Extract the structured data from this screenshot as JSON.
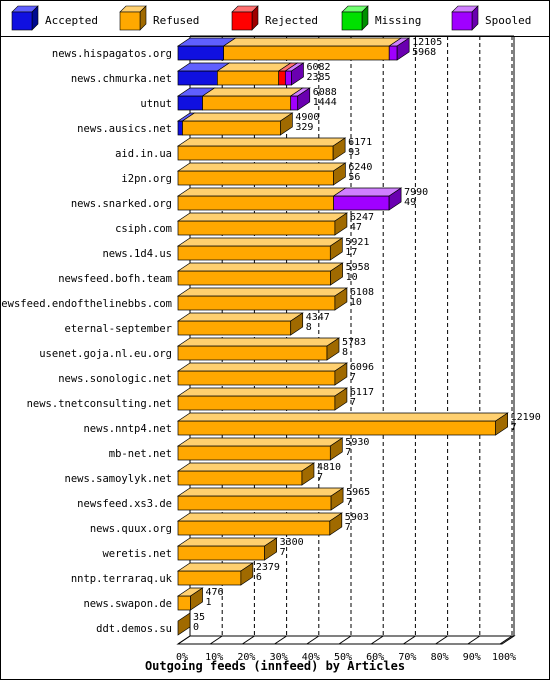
{
  "chart_data": {
    "type": "bar",
    "stacked": true,
    "orientation": "horizontal",
    "style": "3d",
    "xlabel": "Outgoing feeds (innfeed) by Articles",
    "ylabel": "",
    "x_ticks": [
      "0%",
      "10%",
      "20%",
      "30%",
      "40%",
      "50%",
      "60%",
      "70%",
      "80%",
      "90%",
      "100%"
    ],
    "grid": "vertical dashed",
    "legend_position": "top",
    "series": [
      {
        "name": "Accepted",
        "color": "#1010e0",
        "side": "#000a90",
        "top": "#6060ff"
      },
      {
        "name": "Refused",
        "color": "#ffa800",
        "side": "#a06a00",
        "top": "#ffd070"
      },
      {
        "name": "Rejected",
        "color": "#ff0000",
        "side": "#a00000",
        "top": "#ff7070"
      },
      {
        "name": "Missing",
        "color": "#00e000",
        "side": "#009000",
        "top": "#70ff70"
      },
      {
        "name": "Spooled",
        "color": "#a000ff",
        "side": "#6a00b0",
        "top": "#d080ff"
      }
    ],
    "rows": [
      {
        "label": "news.hispagatos.org",
        "total": "12105",
        "spooled": "5968",
        "segs": [
          1785,
          6480,
          0,
          0,
          310
        ]
      },
      {
        "label": "news.chmurka.net",
        "total": "6082",
        "spooled": "2385",
        "segs": [
          1540,
          2400,
          260,
          0,
          240
        ]
      },
      {
        "label": "utnut",
        "total": "6088",
        "spooled": "1444",
        "segs": [
          960,
          3450,
          0,
          0,
          275
        ]
      },
      {
        "label": "news.ausics.net",
        "total": "4900",
        "spooled": "329",
        "segs": [
          175,
          3830,
          0,
          0,
          0
        ]
      },
      {
        "label": "aid.in.ua",
        "total": "6171",
        "spooled": "93",
        "segs": [
          0,
          6070,
          0,
          0,
          0
        ]
      },
      {
        "label": "i2pn.org",
        "total": "6240",
        "spooled": "56",
        "segs": [
          0,
          6080,
          0,
          0,
          0
        ]
      },
      {
        "label": "news.snarked.org",
        "total": "7990",
        "spooled": "49",
        "segs": [
          0,
          6090,
          0,
          0,
          2170
        ]
      },
      {
        "label": "csiph.com",
        "total": "6247",
        "spooled": "47",
        "segs": [
          0,
          6140,
          0,
          0,
          0
        ]
      },
      {
        "label": "news.1d4.us",
        "total": "5921",
        "spooled": "17",
        "segs": [
          0,
          5960,
          0,
          0,
          0
        ]
      },
      {
        "label": "newsfeed.bofh.team",
        "total": "5958",
        "spooled": "10",
        "segs": [
          0,
          5970,
          0,
          0,
          0
        ]
      },
      {
        "label": "newsfeed.endofthelinebbs.com",
        "total": "6108",
        "spooled": "10",
        "segs": [
          0,
          6140,
          0,
          0,
          0
        ]
      },
      {
        "label": "eternal-september",
        "total": "4347",
        "spooled": "8",
        "segs": [
          0,
          4410,
          0,
          0,
          0
        ]
      },
      {
        "label": "usenet.goja.nl.eu.org",
        "total": "5783",
        "spooled": "8",
        "segs": [
          0,
          5830,
          0,
          0,
          0
        ]
      },
      {
        "label": "news.sonologic.net",
        "total": "6096",
        "spooled": "7",
        "segs": [
          0,
          6140,
          0,
          0,
          0
        ]
      },
      {
        "label": "news.tnetconsulting.net",
        "total": "6117",
        "spooled": "7",
        "segs": [
          0,
          6140,
          0,
          0,
          0
        ]
      },
      {
        "label": "news.nntp4.net",
        "total": "12190",
        "spooled": "7",
        "segs": [
          0,
          12430,
          0,
          0,
          0
        ]
      },
      {
        "label": "mb-net.net",
        "total": "5930",
        "spooled": "7",
        "segs": [
          0,
          5960,
          0,
          0,
          0
        ]
      },
      {
        "label": "news.samoylyk.net",
        "total": "4810",
        "spooled": "7",
        "segs": [
          0,
          4850,
          0,
          0,
          0
        ]
      },
      {
        "label": "newsfeed.xs3.de",
        "total": "5965",
        "spooled": "7",
        "segs": [
          0,
          5990,
          0,
          0,
          0
        ]
      },
      {
        "label": "news.quux.org",
        "total": "5903",
        "spooled": "7",
        "segs": [
          0,
          5940,
          0,
          0,
          0
        ]
      },
      {
        "label": "weretis.net",
        "total": "3300",
        "spooled": "7",
        "segs": [
          0,
          3390,
          0,
          0,
          0
        ]
      },
      {
        "label": "nntp.terraraq.uk",
        "total": "2379",
        "spooled": "6",
        "segs": [
          0,
          2460,
          0,
          0,
          0
        ]
      },
      {
        "label": "news.swapon.de",
        "total": "476",
        "spooled": "1",
        "segs": [
          0,
          490,
          0,
          0,
          0
        ]
      },
      {
        "label": "ddt.demos.su",
        "total": "35",
        "spooled": "0",
        "segs": [
          0,
          0,
          0,
          0,
          0
        ]
      }
    ],
    "x_max": 12600
  }
}
